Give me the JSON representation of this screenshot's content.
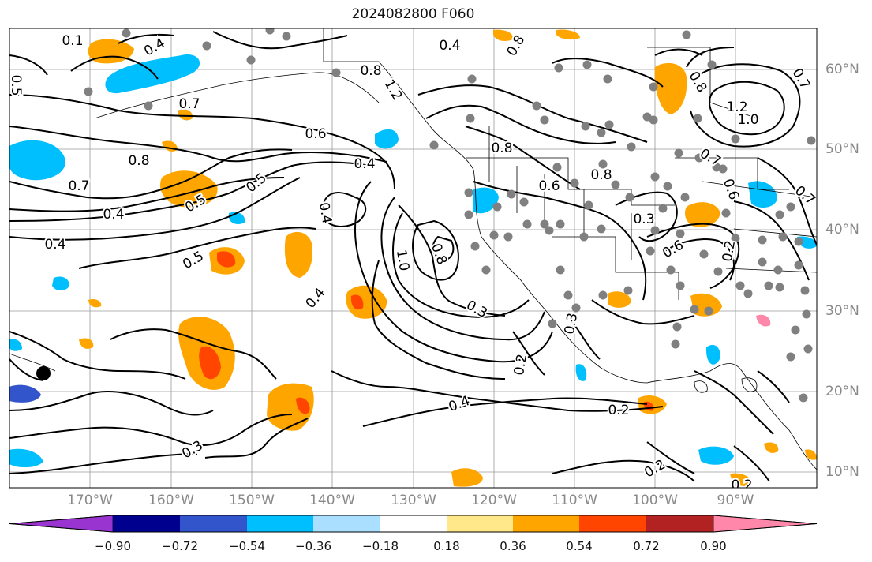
{
  "title": "2024082800 F060",
  "colors": {
    "ocean": "#ffffff",
    "contour": "#000000",
    "grid": "#9a9a9a",
    "dots": "#808080",
    "scale": [
      "#9a34d1",
      "#00008f",
      "#3355cc",
      "#00bfff",
      "#aadfff",
      "#ffffff",
      "#ffe88a",
      "#ffa500",
      "#ff4500",
      "#b22222",
      "#ff88aa"
    ]
  },
  "longitude_labels": [
    "170°W",
    "160°W",
    "150°W",
    "140°W",
    "130°W",
    "120°W",
    "110°W",
    "100°W",
    "90°W"
  ],
  "latitude_labels": [
    "60°N",
    "50°N",
    "40°N",
    "30°N",
    "20°N",
    "10°N"
  ],
  "colorbar_ticks": [
    "−0.90",
    "−0.72",
    "−0.54",
    "−0.36",
    "−0.18",
    "0.18",
    "0.36",
    "0.54",
    "0.72",
    "0.90"
  ],
  "contour_labels": [
    "0.1",
    "0.4",
    "0.4",
    "0.5",
    "0.8",
    "0.7",
    "0.8",
    "0.8",
    "0.7",
    "0.4",
    "0.5",
    "0.6",
    "0.8",
    "0.4",
    "0.7",
    "0.5",
    "0.4",
    "0.5",
    "0.4",
    "0.4",
    "1.2",
    "0.8",
    "1.0",
    "0.3",
    "0.2",
    "0.4",
    "0.3",
    "0.2",
    "0.6",
    "0.8",
    "0.3",
    "0.6",
    "0.2",
    "0.3",
    "0.2",
    "1.2",
    "1.0",
    "0.7",
    "0.6",
    "0.8",
    "0.2",
    "0.7"
  ]
}
